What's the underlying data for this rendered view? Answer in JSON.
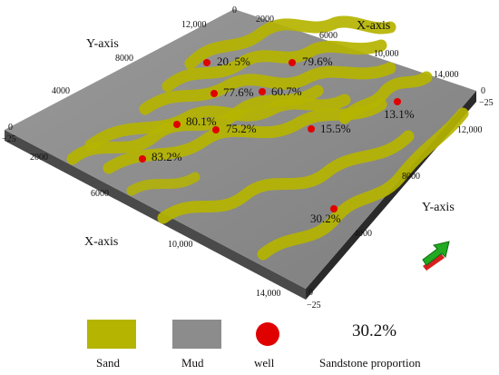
{
  "axes": {
    "x_title": "X-axis",
    "y_title": "Y-axis",
    "x_title_2": "X-axis",
    "y_title_2": "Y-axis",
    "top_x_ticks": [
      "0",
      "2000",
      "6000",
      "10,000",
      "14,000"
    ],
    "left_y_ticks": [
      "12,000",
      "8000",
      "4000"
    ],
    "front_x_ticks": [
      "2000",
      "6000",
      "10,000",
      "14,000"
    ],
    "right_y_ticks": [
      "12,000",
      "8000",
      "4000"
    ],
    "depth_ticks_left": [
      "0",
      "−25"
    ],
    "depth_ticks_right": [
      "0",
      "−25"
    ],
    "depth_ticks_bottom": [
      "0",
      "−25"
    ]
  },
  "wells": [
    {
      "label": "20. 5%"
    },
    {
      "label": "79.6%"
    },
    {
      "label": "77.6%"
    },
    {
      "label": "60.7%"
    },
    {
      "label": "80.1%"
    },
    {
      "label": "75.2%"
    },
    {
      "label": "15.5%"
    },
    {
      "label": "13.1%"
    },
    {
      "label": "83.2%"
    },
    {
      "label": "30.2%"
    }
  ],
  "colors": {
    "sand": "#b5b400",
    "mud": "#8c8c8c",
    "well": "#e00000",
    "arrow_green": "#22aa22",
    "arrow_red": "#d62020"
  },
  "legend": {
    "sand_label": "Sand",
    "mud_label": "Mud",
    "well_label": "well",
    "proportion_value": "30.2%",
    "proportion_label": "Sandstone proportion"
  },
  "icons": {
    "north_arrow": "green-red-3d-arrow-icon"
  }
}
